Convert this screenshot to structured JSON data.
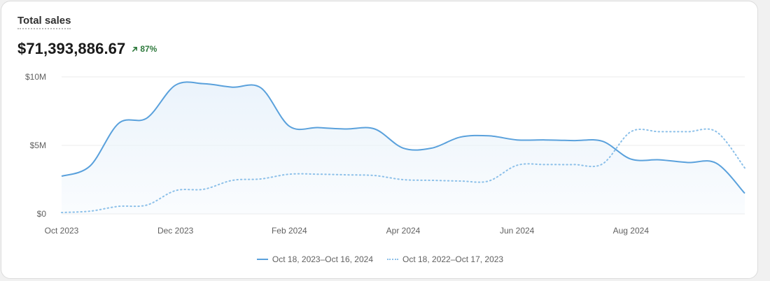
{
  "card": {
    "title": "Total sales",
    "total": "$71,393,886.67",
    "change": "87%",
    "change_icon": "arrow-up-right-icon",
    "change_color": "#2f7a3d"
  },
  "colors": {
    "current": "#5aa1dc",
    "previous": "#8cc0e9",
    "fill": "#eaf3fb",
    "grid": "#ebebeb"
  },
  "chart_data": {
    "type": "area",
    "x_labels": [
      "Oct 2023",
      "Dec 2023",
      "Feb 2024",
      "Apr 2024",
      "Jun 2024",
      "Aug 2024"
    ],
    "y_ticks": [
      {
        "value": 0,
        "label": "$0"
      },
      {
        "value": 5000000,
        "label": "$5M"
      },
      {
        "value": 10000000,
        "label": "$10M"
      }
    ],
    "ylim": [
      0,
      10000000
    ],
    "xlim": [
      0,
      12
    ],
    "grid": true,
    "legend_position": "bottom",
    "series": [
      {
        "name": "Oct 18, 2023–Oct 16, 2024",
        "style": "solid",
        "points": [
          [
            0,
            2750000
          ],
          [
            0.5,
            3500000
          ],
          [
            1,
            6600000
          ],
          [
            1.5,
            7000000
          ],
          [
            2,
            9400000
          ],
          [
            2.5,
            9500000
          ],
          [
            3,
            9250000
          ],
          [
            3.5,
            9200000
          ],
          [
            4,
            6400000
          ],
          [
            4.5,
            6300000
          ],
          [
            5,
            6200000
          ],
          [
            5.5,
            6200000
          ],
          [
            6,
            4800000
          ],
          [
            6.5,
            4800000
          ],
          [
            7,
            5600000
          ],
          [
            7.5,
            5700000
          ],
          [
            8,
            5400000
          ],
          [
            8.5,
            5400000
          ],
          [
            9,
            5350000
          ],
          [
            9.5,
            5300000
          ],
          [
            10,
            4000000
          ],
          [
            10.5,
            3950000
          ],
          [
            11,
            3750000
          ],
          [
            11.5,
            3700000
          ],
          [
            12,
            1500000
          ]
        ]
      },
      {
        "name": "Oct 18, 2022–Oct 17, 2023",
        "style": "dotted",
        "points": [
          [
            0,
            100000
          ],
          [
            0.5,
            200000
          ],
          [
            1,
            550000
          ],
          [
            1.5,
            650000
          ],
          [
            2,
            1700000
          ],
          [
            2.5,
            1800000
          ],
          [
            3,
            2450000
          ],
          [
            3.5,
            2550000
          ],
          [
            4,
            2900000
          ],
          [
            4.5,
            2900000
          ],
          [
            5,
            2850000
          ],
          [
            5.5,
            2800000
          ],
          [
            6,
            2500000
          ],
          [
            6.5,
            2450000
          ],
          [
            7,
            2400000
          ],
          [
            7.5,
            2400000
          ],
          [
            8,
            3550000
          ],
          [
            8.5,
            3600000
          ],
          [
            9,
            3600000
          ],
          [
            9.5,
            3650000
          ],
          [
            10,
            6000000
          ],
          [
            10.5,
            6000000
          ],
          [
            11,
            6000000
          ],
          [
            11.5,
            6000000
          ],
          [
            12,
            3350000
          ]
        ]
      }
    ]
  }
}
